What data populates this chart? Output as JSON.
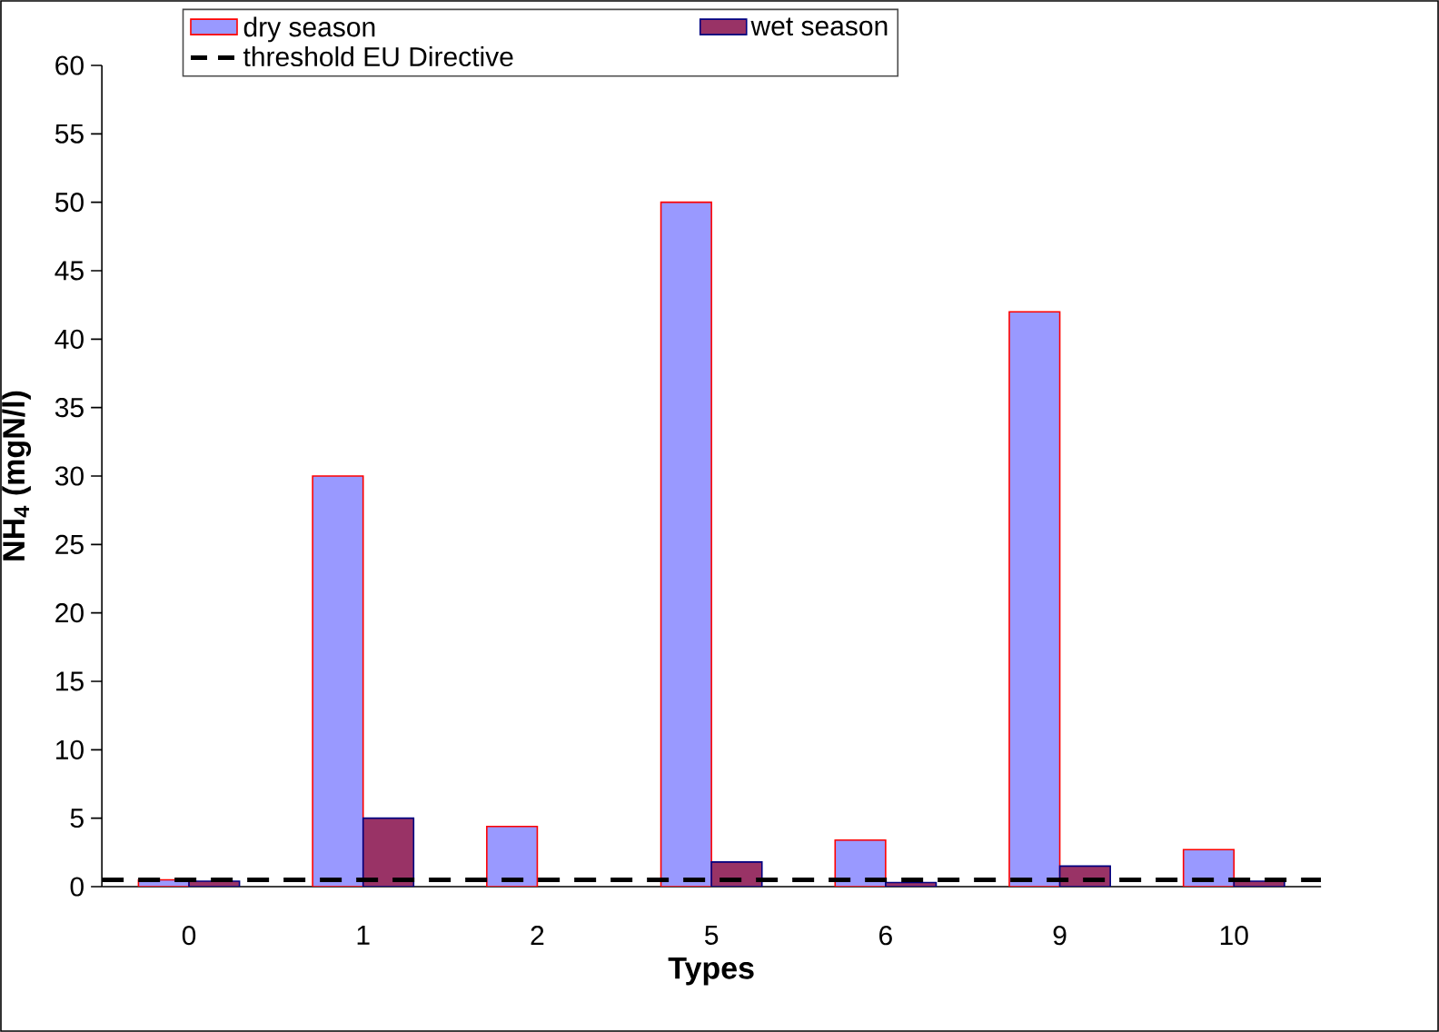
{
  "chart_data": {
    "type": "bar",
    "xlabel": "Types",
    "ylabel": "NH$_{4}$ (mgN/l)",
    "categories": [
      "0",
      "1",
      "2",
      "5",
      "6",
      "9",
      "10"
    ],
    "series": [
      {
        "name": "dry season",
        "color": "#9999ff",
        "values": [
          0.5,
          30,
          4.4,
          50,
          3.4,
          42,
          2.7
        ]
      },
      {
        "name": "wet season",
        "color": "#993366",
        "values": [
          0.4,
          5,
          null,
          1.8,
          0.3,
          1.5,
          0.4
        ]
      }
    ],
    "ylim": [
      0,
      60
    ],
    "yticks": [
      0,
      5,
      10,
      15,
      20,
      25,
      30,
      35,
      40,
      45,
      50,
      55,
      60
    ],
    "ref_lines": [
      {
        "axis": "y",
        "value": 0.5,
        "label": "threshold EU Directive",
        "color": "#000000",
        "line_style": "dashed"
      }
    ],
    "legend": "top",
    "grid": false
  }
}
